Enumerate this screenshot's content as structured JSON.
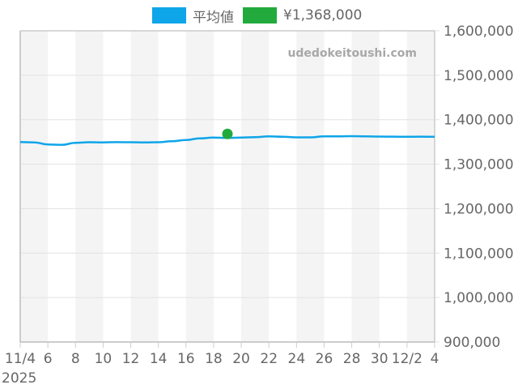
{
  "legend": {
    "items": [
      {
        "label": "平均値",
        "color": "#0ea5e9"
      },
      {
        "label": "¥1,368,000",
        "color": "#22ab3c"
      }
    ]
  },
  "watermark": "udedokeitoushi.com",
  "chart_data": {
    "type": "line",
    "title": "",
    "xlabel": "",
    "ylabel": "",
    "ylim": [
      900000,
      1600000
    ],
    "grid": true,
    "legend_position": "top",
    "y_ticks": [
      "1,600,000",
      "1,500,000",
      "1,400,000",
      "1,300,000",
      "1,200,000",
      "1,100,000",
      "1,000,000",
      "900,000"
    ],
    "x_ticks": [
      "11/4",
      "6",
      "8",
      "10",
      "12",
      "14",
      "16",
      "18",
      "20",
      "22",
      "24",
      "26",
      "28",
      "30",
      "12/2",
      "4"
    ],
    "x_year_label": "2025",
    "x": [
      "11/4",
      "11/5",
      "11/6",
      "11/7",
      "11/8",
      "11/9",
      "11/10",
      "11/11",
      "11/12",
      "11/13",
      "11/14",
      "11/15",
      "11/16",
      "11/17",
      "11/18",
      "11/19",
      "11/20",
      "11/21",
      "11/22",
      "11/23",
      "11/24",
      "11/25",
      "11/26",
      "11/27",
      "11/28",
      "11/29",
      "11/30",
      "12/1",
      "12/2",
      "12/3",
      "12/4"
    ],
    "series": [
      {
        "name": "平均値",
        "type": "line",
        "color": "#0ea5e9",
        "values": [
          1349800,
          1349000,
          1344300,
          1343400,
          1348000,
          1349400,
          1349000,
          1349500,
          1349400,
          1349000,
          1349400,
          1351600,
          1354300,
          1358000,
          1359800,
          1359000,
          1359800,
          1360700,
          1362500,
          1361600,
          1360200,
          1360200,
          1362500,
          1362500,
          1363000,
          1362500,
          1362000,
          1361800,
          1361600,
          1361800,
          1361600
        ]
      },
      {
        "name": "¥1,368,000",
        "type": "scatter",
        "color": "#22ab3c",
        "points": [
          {
            "x": "11/19",
            "y": 1368000
          }
        ]
      }
    ]
  }
}
